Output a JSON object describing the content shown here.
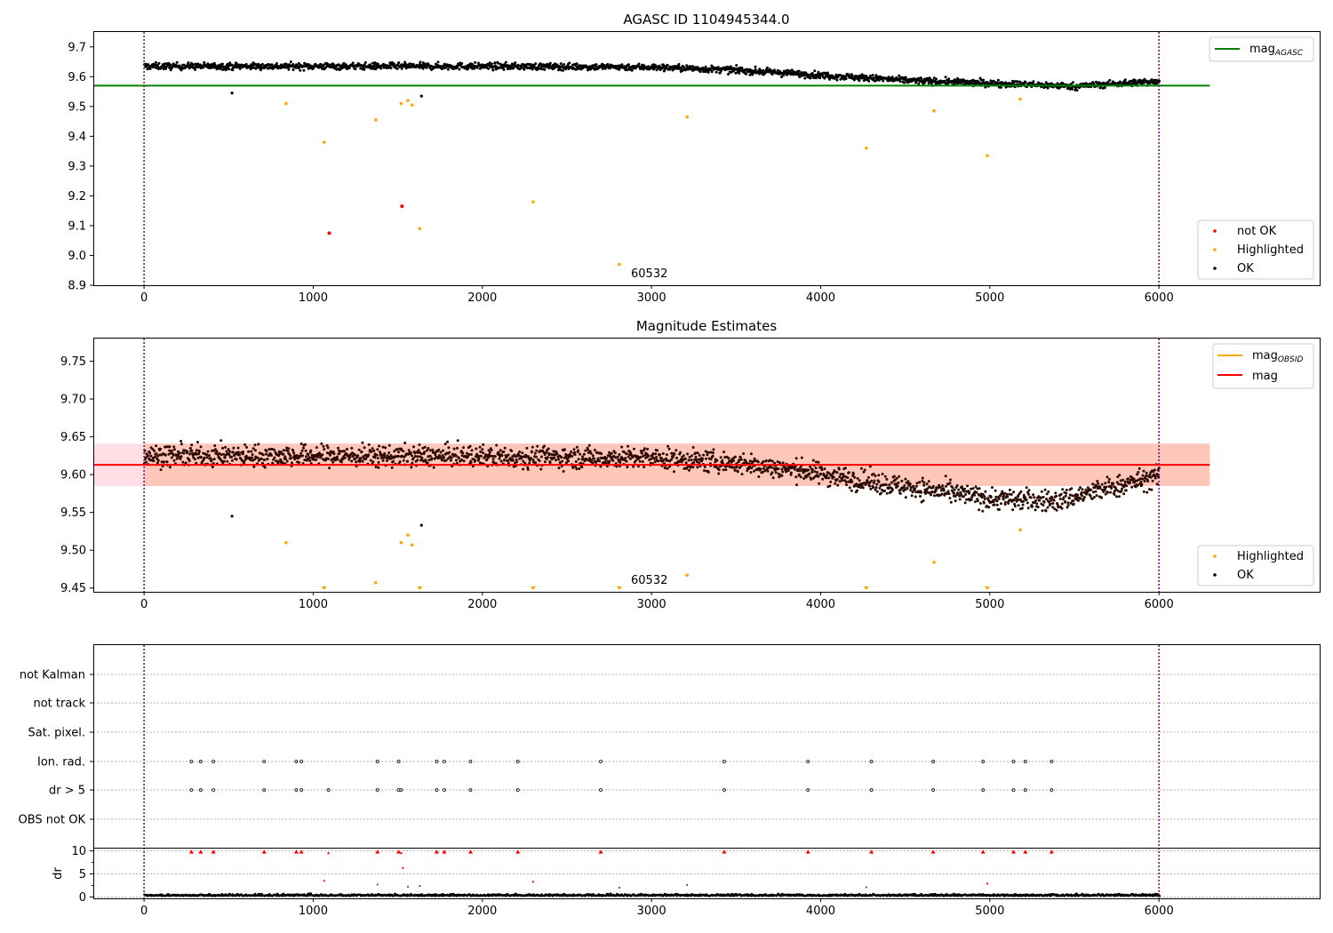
{
  "chart_data": [
    {
      "type": "scatter",
      "title": "AGASC ID 1104945344.0",
      "xlim": [
        -300,
        6950
      ],
      "ylim": [
        8.9,
        9.75
      ],
      "xticks": [
        0,
        1000,
        2000,
        3000,
        4000,
        5000,
        6000
      ],
      "yticks": [
        8.9,
        9.0,
        9.1,
        9.2,
        9.3,
        9.4,
        9.5,
        9.6,
        9.7
      ],
      "ytick_labels": [
        "8.9",
        "9.0",
        "9.1",
        "9.2",
        "9.3",
        "9.4",
        "9.5",
        "9.6",
        "9.7"
      ],
      "vlines": [
        0,
        6000
      ],
      "hline": {
        "name": "mag_AGASC",
        "y": 9.57,
        "x_range": [
          -300,
          6300
        ],
        "color": "#008000"
      },
      "annotation": {
        "text": "60532",
        "x": 2900,
        "y": 8.95
      },
      "ok_trend": [
        [
          0,
          9.635
        ],
        [
          1000,
          9.635
        ],
        [
          2000,
          9.635
        ],
        [
          3000,
          9.632
        ],
        [
          3500,
          9.622
        ],
        [
          4000,
          9.605
        ],
        [
          4500,
          9.588
        ],
        [
          5000,
          9.578
        ],
        [
          5500,
          9.568
        ],
        [
          6000,
          9.585
        ]
      ],
      "ok_outliers": [
        {
          "x": 520,
          "y": 9.545
        },
        {
          "x": 1640,
          "y": 9.535
        }
      ],
      "highlighted": [
        {
          "x": 840,
          "y": 9.51
        },
        {
          "x": 1065,
          "y": 9.38
        },
        {
          "x": 1370,
          "y": 9.455
        },
        {
          "x": 1520,
          "y": 9.51
        },
        {
          "x": 1560,
          "y": 9.52
        },
        {
          "x": 1585,
          "y": 9.505
        },
        {
          "x": 1630,
          "y": 9.09
        },
        {
          "x": 2300,
          "y": 9.18
        },
        {
          "x": 2810,
          "y": 8.97
        },
        {
          "x": 3210,
          "y": 9.465
        },
        {
          "x": 4270,
          "y": 9.36
        },
        {
          "x": 4670,
          "y": 9.485
        },
        {
          "x": 4985,
          "y": 9.335
        },
        {
          "x": 5180,
          "y": 9.525
        }
      ],
      "not_ok": [
        {
          "x": 1525,
          "y": 9.165
        },
        {
          "x": 1095,
          "y": 9.075
        }
      ],
      "legend_top": [
        {
          "label": "mag",
          "sub": "AGASC",
          "color": "#008000"
        }
      ],
      "legend_bottom": [
        {
          "label": "not OK",
          "color": "#ff0000"
        },
        {
          "label": "Highlighted",
          "color": "#ffa500"
        },
        {
          "label": "OK",
          "color": "#000000"
        }
      ]
    },
    {
      "type": "scatter",
      "title": "Magnitude Estimates",
      "xlim": [
        -300,
        6950
      ],
      "ylim": [
        9.445,
        9.78
      ],
      "xticks": [
        0,
        1000,
        2000,
        3000,
        4000,
        5000,
        6000
      ],
      "yticks": [
        9.45,
        9.5,
        9.55,
        9.6,
        9.65,
        9.7,
        9.75
      ],
      "ytick_labels": [
        "9.45",
        "9.50",
        "9.55",
        "9.60",
        "9.65",
        "9.70",
        "9.75"
      ],
      "vlines": [
        0,
        6000
      ],
      "mag_line": {
        "name": "mag",
        "y": 9.613,
        "x_range": [
          -300,
          6300
        ],
        "color": "#ff0000"
      },
      "mag_band": {
        "y": [
          9.585,
          9.641
        ],
        "x_range": [
          -300,
          6300
        ],
        "color": "#ffc0cb"
      },
      "obsid_band": {
        "y": [
          9.585,
          9.641
        ],
        "x_range": [
          0,
          6300
        ],
        "color": "#ffa07a"
      },
      "annotation": {
        "text": "60532",
        "x": 2900,
        "y": 9.458
      },
      "ok_trend": [
        [
          0,
          9.625
        ],
        [
          1000,
          9.625
        ],
        [
          2000,
          9.624
        ],
        [
          3000,
          9.622
        ],
        [
          3500,
          9.615
        ],
        [
          3900,
          9.605
        ],
        [
          4300,
          9.59
        ],
        [
          4700,
          9.578
        ],
        [
          5000,
          9.568
        ],
        [
          5400,
          9.565
        ],
        [
          5700,
          9.582
        ],
        [
          6000,
          9.598
        ]
      ],
      "ok_outliers": [
        {
          "x": 520,
          "y": 9.545
        },
        {
          "x": 1640,
          "y": 9.533
        }
      ],
      "highlighted": [
        {
          "x": 840,
          "y": 9.51
        },
        {
          "x": 1520,
          "y": 9.51
        },
        {
          "x": 1560,
          "y": 9.52
        },
        {
          "x": 1585,
          "y": 9.507
        },
        {
          "x": 1370,
          "y": 9.457
        },
        {
          "x": 3210,
          "y": 9.467
        },
        {
          "x": 4670,
          "y": 9.484
        },
        {
          "x": 5180,
          "y": 9.527
        }
      ],
      "highlighted_clipped_x": [
        1065,
        1630,
        2300,
        2810,
        4270,
        4985
      ],
      "legend_top": [
        {
          "label": "mag",
          "sub": "OBSID",
          "color": "#ffa500"
        },
        {
          "label": "mag",
          "sub": "",
          "color": "#ff0000"
        }
      ],
      "legend_bottom": [
        {
          "label": "Highlighted",
          "color": "#ffa500"
        },
        {
          "label": "OK",
          "color": "#000000"
        }
      ]
    },
    {
      "type": "scatter",
      "title": "",
      "xlim": [
        -300,
        6950
      ],
      "xticks": [
        0,
        1000,
        2000,
        3000,
        4000,
        5000,
        6000
      ],
      "vlines": [
        0,
        6000
      ],
      "flag_rows": [
        "not Kalman",
        "not track",
        "Sat. pixel.",
        "Ion. rad.",
        "dr > 5",
        "OBS not OK"
      ],
      "flag_x": [
        280,
        335,
        410,
        710,
        900,
        930,
        1380,
        1505,
        1730,
        1775,
        1930,
        2210,
        2700,
        3430,
        3925,
        4300,
        4665,
        4960,
        5140,
        5210,
        5365
      ],
      "dr_only_x": [
        1090,
        1520
      ],
      "ylabel": "dr",
      "dr_ylim": [
        -0.3,
        10.5
      ],
      "dr_yticks": [
        0,
        5,
        10
      ],
      "dr_mid": [
        {
          "x": 1065,
          "y": 3.5
        },
        {
          "x": 1530,
          "y": 6.3
        },
        {
          "x": 2300,
          "y": 3.3
        },
        {
          "x": 4985,
          "y": 2.9
        },
        {
          "x": 1380,
          "y": 2.7
        },
        {
          "x": 1560,
          "y": 2.2
        },
        {
          "x": 1630,
          "y": 2.4
        },
        {
          "x": 2810,
          "y": 2.0
        },
        {
          "x": 3210,
          "y": 2.6
        },
        {
          "x": 4270,
          "y": 2.1
        }
      ]
    }
  ]
}
